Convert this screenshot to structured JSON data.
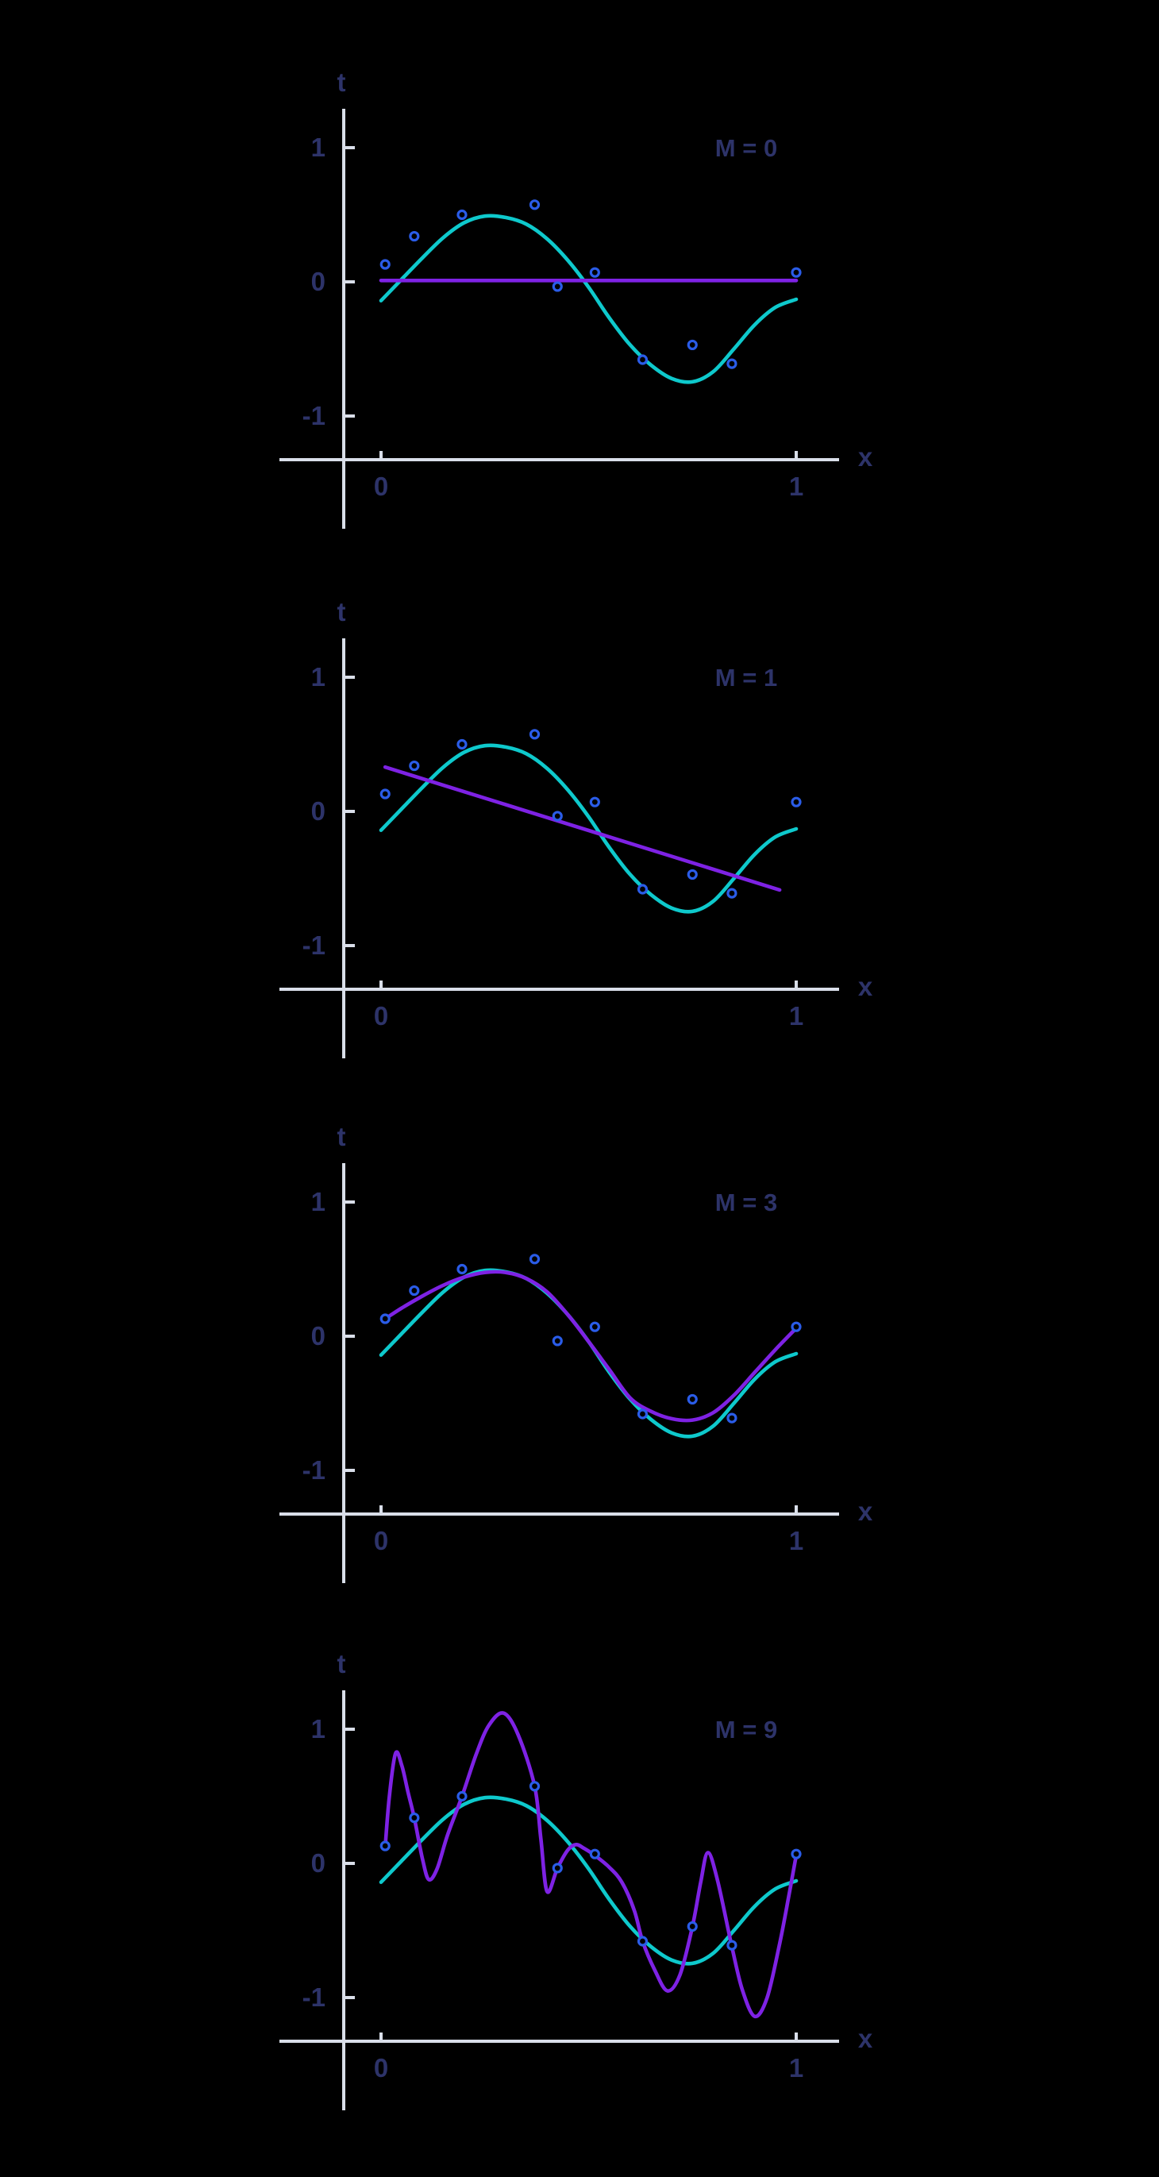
{
  "page": {
    "background": "#000000"
  },
  "colors": {
    "axis": "#d9dee9",
    "label": "#2d3369",
    "true_curve": "#0ec9cc",
    "fit_curve": "#7e22e4",
    "point": "#2a5ce8"
  },
  "figure": {
    "y_axis_label": "t",
    "x_axis_label": "x",
    "y_tick_labels": [
      "1",
      "0",
      "-1"
    ],
    "x_tick_labels": [
      "0",
      "1"
    ]
  },
  "chart_data": [
    {
      "type": "line",
      "title": "M = 0",
      "M": 0,
      "xlabel": "x",
      "ylabel": "t",
      "xlim": [
        0,
        1
      ],
      "ylim": [
        -1.33,
        1.29
      ],
      "x_ticks": [
        0,
        1
      ],
      "y_ticks": [
        1,
        0,
        -1
      ],
      "grid": false,
      "legend_position": "none",
      "annotation": "M = 0",
      "scatter_points": [
        [
          0.01,
          0.13
        ],
        [
          0.08,
          0.34
        ],
        [
          0.195,
          0.5
        ],
        [
          0.37,
          0.575
        ],
        [
          0.425,
          -0.035
        ],
        [
          0.515,
          0.07
        ],
        [
          0.63,
          -0.58
        ],
        [
          0.75,
          -0.47
        ],
        [
          0.845,
          -0.61
        ],
        [
          1.0,
          0.07
        ]
      ],
      "series": [
        {
          "name": "true-function",
          "role": "true_curve",
          "x": [
            0,
            0.05,
            0.1,
            0.15,
            0.2,
            0.25,
            0.3,
            0.35,
            0.4,
            0.45,
            0.5,
            0.55,
            0.6,
            0.65,
            0.7,
            0.75,
            0.8,
            0.85,
            0.9,
            0.95,
            1.0
          ],
          "y": [
            -0.14,
            0.02,
            0.18,
            0.33,
            0.44,
            0.49,
            0.48,
            0.43,
            0.32,
            0.16,
            -0.04,
            -0.27,
            -0.47,
            -0.62,
            -0.72,
            -0.745,
            -0.67,
            -0.5,
            -0.32,
            -0.19,
            -0.13
          ]
        },
        {
          "name": "polynomial-fit-M0",
          "role": "fit_curve",
          "x": [
            0,
            1.0
          ],
          "y": [
            0.01,
            0.01
          ]
        }
      ]
    },
    {
      "type": "line",
      "title": "M = 1",
      "M": 1,
      "xlabel": "x",
      "ylabel": "t",
      "xlim": [
        0,
        1
      ],
      "ylim": [
        -1.33,
        1.29
      ],
      "x_ticks": [
        0,
        1
      ],
      "y_ticks": [
        1,
        0,
        -1
      ],
      "grid": false,
      "legend_position": "none",
      "annotation": "M = 1",
      "scatter_points": [
        [
          0.01,
          0.13
        ],
        [
          0.08,
          0.34
        ],
        [
          0.195,
          0.5
        ],
        [
          0.37,
          0.575
        ],
        [
          0.425,
          -0.035
        ],
        [
          0.515,
          0.07
        ],
        [
          0.63,
          -0.58
        ],
        [
          0.75,
          -0.47
        ],
        [
          0.845,
          -0.61
        ],
        [
          1.0,
          0.07
        ]
      ],
      "series": [
        {
          "name": "true-function",
          "role": "true_curve",
          "x": [
            0,
            0.05,
            0.1,
            0.15,
            0.2,
            0.25,
            0.3,
            0.35,
            0.4,
            0.45,
            0.5,
            0.55,
            0.6,
            0.65,
            0.7,
            0.75,
            0.8,
            0.85,
            0.9,
            0.95,
            1.0
          ],
          "y": [
            -0.14,
            0.02,
            0.18,
            0.33,
            0.44,
            0.49,
            0.48,
            0.43,
            0.32,
            0.16,
            -0.04,
            -0.27,
            -0.47,
            -0.62,
            -0.72,
            -0.745,
            -0.67,
            -0.5,
            -0.32,
            -0.19,
            -0.13
          ]
        },
        {
          "name": "polynomial-fit-M1",
          "role": "fit_curve",
          "x": [
            0.01,
            0.96
          ],
          "y": [
            0.33,
            -0.585
          ]
        }
      ]
    },
    {
      "type": "line",
      "title": "M = 3",
      "M": 3,
      "xlabel": "x",
      "ylabel": "t",
      "xlim": [
        0,
        1
      ],
      "ylim": [
        -1.33,
        1.29
      ],
      "x_ticks": [
        0,
        1
      ],
      "y_ticks": [
        1,
        0,
        -1
      ],
      "grid": false,
      "legend_position": "none",
      "annotation": "M = 3",
      "scatter_points": [
        [
          0.01,
          0.13
        ],
        [
          0.08,
          0.34
        ],
        [
          0.195,
          0.5
        ],
        [
          0.37,
          0.575
        ],
        [
          0.425,
          -0.035
        ],
        [
          0.515,
          0.07
        ],
        [
          0.63,
          -0.58
        ],
        [
          0.75,
          -0.47
        ],
        [
          0.845,
          -0.61
        ],
        [
          1.0,
          0.07
        ]
      ],
      "series": [
        {
          "name": "true-function",
          "role": "true_curve",
          "x": [
            0,
            0.05,
            0.1,
            0.15,
            0.2,
            0.25,
            0.3,
            0.35,
            0.4,
            0.45,
            0.5,
            0.55,
            0.6,
            0.65,
            0.7,
            0.75,
            0.8,
            0.85,
            0.9,
            0.95,
            1.0
          ],
          "y": [
            -0.14,
            0.02,
            0.18,
            0.33,
            0.44,
            0.49,
            0.48,
            0.43,
            0.32,
            0.16,
            -0.04,
            -0.27,
            -0.47,
            -0.62,
            -0.72,
            -0.745,
            -0.67,
            -0.5,
            -0.32,
            -0.19,
            -0.13
          ]
        },
        {
          "name": "polynomial-fit-M3",
          "role": "fit_curve",
          "x": [
            0.01,
            0.05,
            0.1,
            0.15,
            0.2,
            0.25,
            0.3,
            0.35,
            0.4,
            0.45,
            0.5,
            0.55,
            0.6,
            0.65,
            0.7,
            0.75,
            0.8,
            0.85,
            0.9,
            0.95,
            1.0
          ],
          "y": [
            0.13,
            0.21,
            0.3,
            0.38,
            0.44,
            0.475,
            0.475,
            0.43,
            0.33,
            0.16,
            -0.04,
            -0.25,
            -0.46,
            -0.56,
            -0.615,
            -0.625,
            -0.57,
            -0.44,
            -0.27,
            -0.1,
            0.06
          ]
        }
      ]
    },
    {
      "type": "line",
      "title": "M = 9",
      "M": 9,
      "xlabel": "x",
      "ylabel": "t",
      "xlim": [
        0,
        1
      ],
      "ylim": [
        -1.33,
        1.29
      ],
      "x_ticks": [
        0,
        1
      ],
      "y_ticks": [
        1,
        0,
        -1
      ],
      "grid": false,
      "legend_position": "none",
      "annotation": "M = 9",
      "scatter_points": [
        [
          0.01,
          0.13
        ],
        [
          0.08,
          0.34
        ],
        [
          0.195,
          0.5
        ],
        [
          0.37,
          0.575
        ],
        [
          0.425,
          -0.035
        ],
        [
          0.515,
          0.07
        ],
        [
          0.63,
          -0.58
        ],
        [
          0.75,
          -0.47
        ],
        [
          0.845,
          -0.61
        ],
        [
          1.0,
          0.07
        ]
      ],
      "series": [
        {
          "name": "true-function",
          "role": "true_curve",
          "x": [
            0,
            0.05,
            0.1,
            0.15,
            0.2,
            0.25,
            0.3,
            0.35,
            0.4,
            0.45,
            0.5,
            0.55,
            0.6,
            0.65,
            0.7,
            0.75,
            0.8,
            0.85,
            0.9,
            0.95,
            1.0
          ],
          "y": [
            -0.14,
            0.02,
            0.18,
            0.33,
            0.44,
            0.49,
            0.48,
            0.43,
            0.32,
            0.16,
            -0.04,
            -0.27,
            -0.47,
            -0.62,
            -0.72,
            -0.745,
            -0.67,
            -0.5,
            -0.32,
            -0.19,
            -0.13
          ]
        },
        {
          "name": "polynomial-fit-M9",
          "role": "fit_curve",
          "x": [
            0.01,
            0.02,
            0.035,
            0.05,
            0.065,
            0.08,
            0.1,
            0.115,
            0.135,
            0.16,
            0.195,
            0.23,
            0.26,
            0.295,
            0.33,
            0.37,
            0.385,
            0.4,
            0.425,
            0.45,
            0.47,
            0.49,
            0.515,
            0.55,
            0.58,
            0.61,
            0.63,
            0.66,
            0.69,
            0.72,
            0.75,
            0.77,
            0.787,
            0.81,
            0.845,
            0.87,
            0.9,
            0.93,
            0.96,
            0.98,
            1.0
          ],
          "y": [
            0.12,
            0.5,
            0.82,
            0.73,
            0.53,
            0.34,
            0.03,
            -0.12,
            -0.04,
            0.21,
            0.5,
            0.82,
            1.03,
            1.12,
            0.96,
            0.575,
            0.18,
            -0.21,
            -0.035,
            0.1,
            0.14,
            0.11,
            0.06,
            -0.03,
            -0.14,
            -0.35,
            -0.58,
            -0.8,
            -0.95,
            -0.83,
            -0.47,
            -0.14,
            0.08,
            -0.12,
            -0.62,
            -0.94,
            -1.14,
            -1.0,
            -0.6,
            -0.28,
            0.06
          ]
        }
      ]
    }
  ]
}
